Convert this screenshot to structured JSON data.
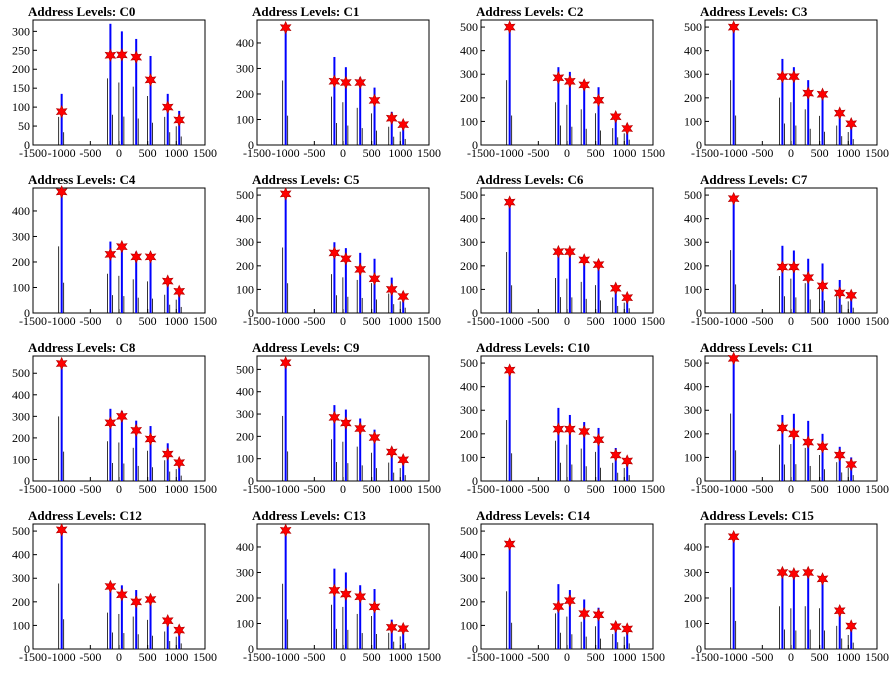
{
  "chart_data": [
    {
      "type": "bar",
      "title": "Address Levels: C0",
      "xlim": [
        -1500,
        1500
      ],
      "ylim": [
        0,
        330
      ],
      "xticks": [
        -1500,
        -1000,
        -500,
        0,
        500,
        1000,
        1500
      ],
      "yticks": [
        0,
        50,
        100,
        150,
        200,
        250,
        300
      ],
      "x": [
        -1000,
        -150,
        50,
        300,
        550,
        850,
        1050
      ],
      "values": [
        88,
        237,
        238,
        232,
        172,
        100,
        66
      ],
      "tall_x": [
        -1000,
        -150,
        50,
        300,
        550,
        850,
        1050
      ],
      "tall_values": [
        135,
        320,
        300,
        280,
        235,
        135,
        90
      ]
    },
    {
      "type": "bar",
      "title": "Address Levels: C1",
      "xlim": [
        -1500,
        1500
      ],
      "ylim": [
        0,
        490
      ],
      "xticks": [
        -1500,
        -1000,
        -500,
        0,
        500,
        1000,
        1500
      ],
      "yticks": [
        0,
        100,
        200,
        300,
        400
      ],
      "x": [
        -1000,
        -150,
        50,
        300,
        550,
        850,
        1050
      ],
      "values": [
        460,
        250,
        245,
        245,
        175,
        105,
        80
      ],
      "tall_x": [
        -1000,
        -150,
        50,
        300,
        550,
        850,
        1050
      ],
      "tall_values": [
        460,
        345,
        305,
        265,
        225,
        130,
        95
      ]
    },
    {
      "type": "bar",
      "title": "Address Levels: C2",
      "xlim": [
        -1500,
        1500
      ],
      "ylim": [
        0,
        530
      ],
      "xticks": [
        -1500,
        -1000,
        -500,
        0,
        500,
        1000,
        1500
      ],
      "yticks": [
        0,
        100,
        200,
        300,
        400,
        500
      ],
      "x": [
        -1000,
        -150,
        50,
        300,
        550,
        850,
        1050
      ],
      "values": [
        500,
        285,
        270,
        255,
        190,
        120,
        70
      ],
      "tall_x": [
        -1000,
        -150,
        50,
        300,
        550,
        850,
        1050
      ],
      "tall_values": [
        500,
        330,
        310,
        275,
        245,
        130,
        90
      ]
    },
    {
      "type": "bar",
      "title": "Address Levels: C3",
      "xlim": [
        -1500,
        1500
      ],
      "ylim": [
        0,
        530
      ],
      "xticks": [
        -1500,
        -1000,
        -500,
        0,
        500,
        1000,
        1500
      ],
      "yticks": [
        0,
        100,
        200,
        300,
        400,
        500
      ],
      "x": [
        -1000,
        -150,
        50,
        300,
        550,
        850,
        1050
      ],
      "values": [
        500,
        290,
        290,
        220,
        215,
        135,
        90
      ],
      "tall_x": [
        -1000,
        -150,
        50,
        300,
        550,
        850,
        1050
      ],
      "tall_values": [
        500,
        365,
        330,
        275,
        225,
        150,
        100
      ]
    },
    {
      "type": "bar",
      "title": "Address Levels: C4",
      "xlim": [
        -1500,
        1500
      ],
      "ylim": [
        0,
        490
      ],
      "xticks": [
        -1500,
        -1000,
        -500,
        0,
        500,
        1000,
        1500
      ],
      "yticks": [
        0,
        100,
        200,
        300,
        400
      ],
      "x": [
        -1000,
        -150,
        50,
        300,
        550,
        850,
        1050
      ],
      "values": [
        475,
        230,
        260,
        220,
        220,
        125,
        85
      ],
      "tall_x": [
        -1000,
        -150,
        50,
        300,
        550,
        850,
        1050
      ],
      "tall_values": [
        475,
        280,
        265,
        240,
        225,
        130,
        95
      ]
    },
    {
      "type": "bar",
      "title": "Address Levels: C5",
      "xlim": [
        -1500,
        1500
      ],
      "ylim": [
        0,
        530
      ],
      "xticks": [
        -1500,
        -1000,
        -500,
        0,
        500,
        1000,
        1500
      ],
      "yticks": [
        0,
        100,
        200,
        300,
        400,
        500
      ],
      "x": [
        -1000,
        -150,
        50,
        300,
        550,
        850,
        1050
      ],
      "values": [
        505,
        255,
        230,
        185,
        145,
        100,
        70
      ],
      "tall_x": [
        -1000,
        -150,
        50,
        300,
        550,
        850,
        1050
      ],
      "tall_values": [
        505,
        300,
        275,
        255,
        230,
        150,
        90
      ]
    },
    {
      "type": "bar",
      "title": "Address Levels: C6",
      "xlim": [
        -1500,
        1500
      ],
      "ylim": [
        0,
        530
      ],
      "xticks": [
        -1500,
        -1000,
        -500,
        0,
        500,
        1000,
        1500
      ],
      "yticks": [
        0,
        100,
        200,
        300,
        400,
        500
      ],
      "x": [
        -1000,
        -150,
        50,
        300,
        550,
        850,
        1050
      ],
      "values": [
        470,
        260,
        260,
        225,
        205,
        105,
        65
      ],
      "tall_x": [
        -1000,
        -150,
        50,
        300,
        550,
        850,
        1050
      ],
      "tall_values": [
        470,
        270,
        265,
        240,
        215,
        120,
        80
      ]
    },
    {
      "type": "bar",
      "title": "Address Levels: C7",
      "xlim": [
        -1500,
        1500
      ],
      "ylim": [
        0,
        530
      ],
      "xticks": [
        -1500,
        -1000,
        -500,
        0,
        500,
        1000,
        1500
      ],
      "yticks": [
        0,
        100,
        200,
        300,
        400,
        500
      ],
      "x": [
        -1000,
        -150,
        50,
        300,
        550,
        850,
        1050
      ],
      "values": [
        485,
        195,
        195,
        150,
        115,
        85,
        75
      ],
      "tall_x": [
        -1000,
        -150,
        50,
        300,
        550,
        850,
        1050
      ],
      "tall_values": [
        485,
        285,
        265,
        230,
        210,
        140,
        90
      ]
    },
    {
      "type": "bar",
      "title": "Address Levels: C8",
      "xlim": [
        -1500,
        1500
      ],
      "ylim": [
        0,
        580
      ],
      "xticks": [
        -1500,
        -1000,
        -500,
        0,
        500,
        1000,
        1500
      ],
      "yticks": [
        0,
        100,
        200,
        300,
        400,
        500
      ],
      "x": [
        -1000,
        -150,
        50,
        300,
        550,
        850,
        1050
      ],
      "values": [
        545,
        270,
        300,
        235,
        195,
        125,
        85
      ],
      "tall_x": [
        -1000,
        -150,
        50,
        300,
        550,
        850,
        1050
      ],
      "tall_values": [
        545,
        335,
        325,
        280,
        255,
        175,
        100
      ]
    },
    {
      "type": "bar",
      "title": "Address Levels: C9",
      "xlim": [
        -1500,
        1500
      ],
      "ylim": [
        0,
        560
      ],
      "xticks": [
        -1500,
        -1000,
        -500,
        0,
        500,
        1000,
        1500
      ],
      "yticks": [
        0,
        100,
        200,
        300,
        400,
        500
      ],
      "x": [
        -1000,
        -150,
        50,
        300,
        550,
        850,
        1050
      ],
      "values": [
        530,
        285,
        260,
        235,
        195,
        130,
        95
      ],
      "tall_x": [
        -1000,
        -150,
        50,
        300,
        550,
        850,
        1050
      ],
      "tall_values": [
        530,
        340,
        320,
        280,
        230,
        150,
        105
      ]
    },
    {
      "type": "bar",
      "title": "Address Levels: C10",
      "xlim": [
        -1500,
        1500
      ],
      "ylim": [
        0,
        530
      ],
      "xticks": [
        -1500,
        -1000,
        -500,
        0,
        500,
        1000,
        1500
      ],
      "yticks": [
        0,
        100,
        200,
        300,
        400,
        500
      ],
      "x": [
        -1000,
        -150,
        50,
        300,
        550,
        850,
        1050
      ],
      "values": [
        470,
        220,
        220,
        210,
        175,
        110,
        85
      ],
      "tall_x": [
        -1000,
        -150,
        50,
        300,
        550,
        850,
        1050
      ],
      "tall_values": [
        470,
        310,
        280,
        250,
        225,
        140,
        100
      ]
    },
    {
      "type": "bar",
      "title": "Address Levels: C11",
      "xlim": [
        -1500,
        1500
      ],
      "ylim": [
        0,
        530
      ],
      "xticks": [
        -1500,
        -1000,
        -500,
        0,
        500,
        1000,
        1500
      ],
      "yticks": [
        0,
        100,
        200,
        300,
        400,
        500
      ],
      "x": [
        -1000,
        -150,
        50,
        300,
        550,
        850,
        1050
      ],
      "values": [
        520,
        225,
        200,
        165,
        145,
        110,
        70
      ],
      "tall_x": [
        -1000,
        -150,
        50,
        300,
        550,
        850,
        1050
      ],
      "tall_values": [
        520,
        280,
        285,
        255,
        200,
        145,
        100
      ]
    },
    {
      "type": "bar",
      "title": "Address Levels: C12",
      "xlim": [
        -1500,
        1500
      ],
      "ylim": [
        0,
        530
      ],
      "xticks": [
        -1500,
        -1000,
        -500,
        0,
        500,
        1000,
        1500
      ],
      "yticks": [
        0,
        100,
        200,
        300,
        400,
        500
      ],
      "x": [
        -1000,
        -150,
        50,
        300,
        550,
        850,
        1050
      ],
      "values": [
        505,
        265,
        230,
        200,
        210,
        120,
        80
      ],
      "tall_x": [
        -1000,
        -150,
        50,
        300,
        550,
        850,
        1050
      ],
      "tall_values": [
        505,
        280,
        270,
        250,
        225,
        135,
        95
      ]
    },
    {
      "type": "bar",
      "title": "Address Levels: C13",
      "xlim": [
        -1500,
        1500
      ],
      "ylim": [
        0,
        490
      ],
      "xticks": [
        -1500,
        -1000,
        -500,
        0,
        500,
        1000,
        1500
      ],
      "yticks": [
        0,
        100,
        200,
        300,
        400
      ],
      "x": [
        -1000,
        -150,
        50,
        300,
        550,
        850,
        1050
      ],
      "values": [
        465,
        230,
        215,
        205,
        165,
        85,
        80
      ],
      "tall_x": [
        -1000,
        -150,
        50,
        300,
        550,
        850,
        1050
      ],
      "tall_values": [
        465,
        315,
        300,
        250,
        235,
        115,
        90
      ]
    },
    {
      "type": "bar",
      "title": "Address Levels: C14",
      "xlim": [
        -1500,
        1500
      ],
      "ylim": [
        0,
        530
      ],
      "xticks": [
        -1500,
        -1000,
        -500,
        0,
        500,
        1000,
        1500
      ],
      "yticks": [
        0,
        100,
        200,
        300,
        400,
        500
      ],
      "x": [
        -1000,
        -150,
        50,
        300,
        550,
        850,
        1050
      ],
      "values": [
        445,
        180,
        205,
        150,
        145,
        95,
        85
      ],
      "tall_x": [
        -1000,
        -150,
        50,
        300,
        550,
        850,
        1050
      ],
      "tall_values": [
        445,
        275,
        250,
        210,
        175,
        115,
        95
      ]
    },
    {
      "type": "bar",
      "title": "Address Levels: C15",
      "xlim": [
        -1500,
        1500
      ],
      "ylim": [
        0,
        490
      ],
      "xticks": [
        -1500,
        -1000,
        -500,
        0,
        500,
        1000,
        1500
      ],
      "yticks": [
        0,
        100,
        200,
        300,
        400
      ],
      "x": [
        -1000,
        -150,
        50,
        300,
        550,
        850,
        1050
      ],
      "values": [
        440,
        300,
        295,
        300,
        275,
        150,
        90
      ],
      "tall_x": [
        -1000,
        -150,
        50,
        300,
        550,
        850,
        1050
      ],
      "tall_values": [
        440,
        305,
        290,
        305,
        290,
        165,
        100
      ]
    }
  ],
  "colors": {
    "bar": "#0000ff",
    "marker": "#ff0000",
    "axis": "#000000"
  }
}
